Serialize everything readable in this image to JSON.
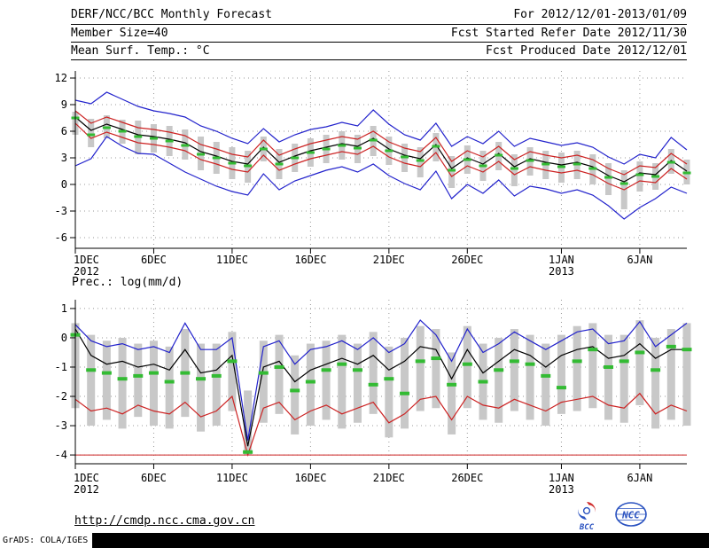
{
  "header": {
    "title": "DERF/NCC/BCC Monthly Forecast",
    "member_size": "Member Size=40",
    "temp_label": "Mean Surf. Temp.: °C",
    "for_range": "For 2012/12/01-2013/01/09",
    "fcst_started": "Fcst Started Refer Date 2012/11/30",
    "fcst_produced": "Fcst Produced Date 2012/12/01"
  },
  "footer": {
    "url": "http://cmdp.ncc.cma.gov.cn",
    "credit": "GrADS: COLA/IGES",
    "bcc_label": "BCC",
    "ncc_label": "NCC"
  },
  "colors": {
    "blue": "#2222cc",
    "red": "#cc2222",
    "green": "#33bb33",
    "gray_bar": "#c8c8c8",
    "black": "#000000",
    "grid": "#999999"
  },
  "chart_data": [
    {
      "type": "line",
      "name": "surface-temperature-forecast",
      "title": "Mean Surf. Temp.: °C",
      "x_start": "1DEC2012",
      "x_end": "9JAN2013",
      "n_days": 40,
      "ylim": [
        -7.2,
        12.8
      ],
      "yticks": [
        12,
        9,
        6,
        3,
        0,
        -3,
        -6
      ],
      "xticks": [
        {
          "day": 0,
          "label": "1DEC",
          "sub": "2012"
        },
        {
          "day": 5,
          "label": "6DEC"
        },
        {
          "day": 10,
          "label": "11DEC"
        },
        {
          "day": 15,
          "label": "16DEC"
        },
        {
          "day": 20,
          "label": "21DEC"
        },
        {
          "day": 25,
          "label": "26DEC"
        },
        {
          "day": 31,
          "label": "1JAN",
          "sub": "2013"
        },
        {
          "day": 36,
          "label": "6JAN"
        }
      ],
      "series": [
        {
          "name": "ensemble-max",
          "color": "#2222cc",
          "values": [
            9.5,
            9.1,
            10.4,
            9.6,
            8.8,
            8.3,
            8.0,
            7.6,
            6.6,
            6.0,
            5.2,
            4.6,
            6.3,
            4.8,
            5.6,
            6.2,
            6.5,
            7.0,
            6.6,
            8.4,
            6.8,
            5.6,
            5.0,
            6.9,
            4.3,
            5.4,
            4.6,
            6.0,
            4.3,
            5.2,
            4.8,
            4.4,
            4.7,
            4.2,
            3.1,
            2.3,
            3.4,
            3.0,
            5.3,
            3.9
          ]
        },
        {
          "name": "ensemble-min",
          "color": "#2222cc",
          "values": [
            2.1,
            2.9,
            5.4,
            4.3,
            3.5,
            3.4,
            2.4,
            1.4,
            0.6,
            -0.2,
            -0.8,
            -1.2,
            1.2,
            -0.6,
            0.4,
            1.0,
            1.6,
            2.0,
            1.4,
            2.3,
            1.0,
            0.1,
            -0.6,
            1.5,
            -1.6,
            0.0,
            -1.0,
            0.5,
            -1.3,
            -0.2,
            -0.5,
            -1.0,
            -0.6,
            -1.2,
            -2.4,
            -3.9,
            -2.6,
            -1.6,
            -0.3,
            -1.0
          ]
        },
        {
          "name": "upper-quartile",
          "color": "#cc2222",
          "values": [
            8.3,
            6.9,
            7.6,
            7.0,
            6.4,
            6.2,
            5.9,
            5.5,
            4.5,
            4.0,
            3.4,
            3.1,
            5.0,
            3.3,
            4.0,
            4.6,
            5.0,
            5.4,
            5.1,
            6.0,
            4.8,
            4.1,
            3.7,
            5.3,
            2.6,
            3.8,
            3.1,
            4.3,
            2.8,
            3.7,
            3.3,
            3.0,
            3.3,
            2.8,
            1.8,
            1.1,
            2.1,
            1.9,
            3.5,
            2.3
          ]
        },
        {
          "name": "lower-quartile",
          "color": "#cc2222",
          "values": [
            6.9,
            5.2,
            5.9,
            5.3,
            4.7,
            4.5,
            4.2,
            3.8,
            2.8,
            2.3,
            1.7,
            1.4,
            3.3,
            1.6,
            2.3,
            2.9,
            3.3,
            3.7,
            3.4,
            4.3,
            3.1,
            2.4,
            2.0,
            3.6,
            0.9,
            2.1,
            1.4,
            2.6,
            1.1,
            2.0,
            1.6,
            1.3,
            1.6,
            1.1,
            0.1,
            -0.6,
            0.4,
            0.2,
            1.8,
            0.6
          ]
        },
        {
          "name": "ensemble-mean",
          "color": "#000000",
          "values": [
            7.6,
            6.1,
            6.8,
            6.2,
            5.6,
            5.4,
            5.1,
            4.7,
            3.7,
            3.2,
            2.6,
            2.3,
            4.2,
            2.5,
            3.2,
            3.8,
            4.2,
            4.6,
            4.3,
            5.2,
            4.0,
            3.3,
            2.9,
            4.5,
            1.8,
            3.0,
            2.3,
            3.5,
            2.0,
            2.9,
            2.5,
            2.2,
            2.5,
            2.0,
            1.0,
            0.3,
            1.3,
            1.1,
            2.7,
            1.5
          ]
        }
      ],
      "bars": {
        "name": "ensemble-spread",
        "color": "#c8c8c8",
        "hi": [
          8.2,
          7.4,
          7.8,
          7.3,
          7.2,
          6.8,
          6.6,
          6.2,
          5.4,
          4.8,
          4.2,
          3.8,
          5.4,
          4.0,
          4.6,
          5.2,
          5.6,
          6.0,
          5.6,
          6.6,
          5.4,
          4.6,
          4.2,
          5.8,
          3.2,
          4.4,
          3.8,
          4.8,
          3.4,
          4.2,
          3.8,
          3.6,
          3.8,
          3.4,
          2.4,
          1.6,
          2.6,
          2.4,
          4.0,
          2.8
        ],
        "lo": [
          5.6,
          4.2,
          5.2,
          4.6,
          3.4,
          3.6,
          3.2,
          2.8,
          1.6,
          1.2,
          0.6,
          0.2,
          2.6,
          0.6,
          1.4,
          2.0,
          2.4,
          2.8,
          2.4,
          3.2,
          2.2,
          1.4,
          0.8,
          2.6,
          -0.4,
          1.2,
          0.4,
          1.6,
          -0.2,
          1.0,
          0.6,
          0.2,
          0.6,
          0.0,
          -1.2,
          -2.8,
          -0.8,
          -0.6,
          1.2,
          0.0
        ]
      },
      "dashes": {
        "name": "climatology-marker",
        "color": "#33bb33",
        "values": [
          7.5,
          5.6,
          6.4,
          6.0,
          5.4,
          5.2,
          4.9,
          4.4,
          3.4,
          3.0,
          2.4,
          2.1,
          4.0,
          2.3,
          3.0,
          3.6,
          4.0,
          4.4,
          4.1,
          5.0,
          3.8,
          3.1,
          2.7,
          4.3,
          1.6,
          2.8,
          2.1,
          3.3,
          1.8,
          2.7,
          2.3,
          2.0,
          2.3,
          1.8,
          0.8,
          0.1,
          1.1,
          0.9,
          2.5,
          1.3
        ]
      }
    },
    {
      "type": "line",
      "name": "precipitation-forecast",
      "title": "Prec.: log(mm/d)",
      "x_start": "1DEC2012",
      "x_end": "9JAN2013",
      "n_days": 40,
      "ylim": [
        -4.3,
        1.3
      ],
      "baseline": -4.0,
      "yticks": [
        1,
        0,
        -1,
        -2,
        -3,
        -4
      ],
      "xticks": [
        {
          "day": 0,
          "label": "1DEC",
          "sub": "2012"
        },
        {
          "day": 5,
          "label": "6DEC"
        },
        {
          "day": 10,
          "label": "11DEC"
        },
        {
          "day": 15,
          "label": "16DEC"
        },
        {
          "day": 20,
          "label": "21DEC"
        },
        {
          "day": 25,
          "label": "26DEC"
        },
        {
          "day": 31,
          "label": "1JAN",
          "sub": "2013"
        },
        {
          "day": 36,
          "label": "6JAN"
        }
      ],
      "series": [
        {
          "name": "ensemble-max",
          "color": "#2222cc",
          "values": [
            0.45,
            -0.1,
            -0.3,
            -0.2,
            -0.4,
            -0.3,
            -0.5,
            0.5,
            -0.4,
            -0.4,
            0.0,
            -3.5,
            -0.3,
            -0.1,
            -0.9,
            -0.4,
            -0.3,
            -0.1,
            -0.4,
            0.0,
            -0.5,
            -0.2,
            0.6,
            0.1,
            -0.8,
            0.3,
            -0.5,
            -0.2,
            0.2,
            -0.1,
            -0.4,
            -0.1,
            0.2,
            0.3,
            -0.2,
            -0.1,
            0.55,
            -0.3,
            0.1,
            0.5
          ]
        },
        {
          "name": "ensemble-lower",
          "color": "#cc2222",
          "values": [
            -2.1,
            -2.5,
            -2.4,
            -2.6,
            -2.3,
            -2.5,
            -2.6,
            -2.2,
            -2.7,
            -2.5,
            -2.0,
            -4.0,
            -2.4,
            -2.2,
            -2.8,
            -2.5,
            -2.3,
            -2.6,
            -2.4,
            -2.2,
            -2.9,
            -2.6,
            -2.1,
            -2.0,
            -2.8,
            -2.0,
            -2.3,
            -2.4,
            -2.1,
            -2.3,
            -2.5,
            -2.2,
            -2.1,
            -2.0,
            -2.3,
            -2.4,
            -1.9,
            -2.6,
            -2.3,
            -2.5
          ]
        },
        {
          "name": "ensemble-mean",
          "color": "#000000",
          "values": [
            0.3,
            -0.6,
            -0.9,
            -0.8,
            -1.0,
            -0.9,
            -1.1,
            -0.4,
            -1.2,
            -1.1,
            -0.6,
            -3.7,
            -1.0,
            -0.8,
            -1.5,
            -1.1,
            -0.9,
            -0.7,
            -0.9,
            -0.6,
            -1.1,
            -0.8,
            -0.3,
            -0.4,
            -1.4,
            -0.4,
            -1.2,
            -0.8,
            -0.4,
            -0.6,
            -1.0,
            -0.6,
            -0.4,
            -0.3,
            -0.7,
            -0.6,
            -0.2,
            -0.7,
            -0.4,
            -0.4
          ]
        }
      ],
      "bars": {
        "name": "ensemble-spread",
        "color": "#c8c8c8",
        "hi": [
          0.5,
          0.1,
          -0.1,
          0.0,
          -0.2,
          -0.1,
          -0.3,
          0.3,
          -0.2,
          -0.2,
          0.2,
          -1.8,
          -0.1,
          0.1,
          -0.6,
          -0.2,
          -0.1,
          0.1,
          -0.2,
          0.2,
          -0.3,
          0.0,
          0.4,
          0.3,
          -0.5,
          0.4,
          -0.2,
          0.0,
          0.3,
          0.1,
          -0.2,
          0.1,
          0.4,
          0.5,
          0.1,
          0.1,
          0.6,
          0.0,
          0.3,
          0.5
        ],
        "lo": [
          -2.4,
          -3.0,
          -2.8,
          -3.1,
          -2.7,
          -3.0,
          -3.1,
          -2.7,
          -3.2,
          -3.0,
          -2.5,
          -4.0,
          -2.9,
          -2.6,
          -3.3,
          -3.0,
          -2.8,
          -3.1,
          -2.9,
          -2.6,
          -3.4,
          -3.1,
          -2.5,
          -2.4,
          -3.3,
          -2.4,
          -2.8,
          -2.9,
          -2.5,
          -2.8,
          -3.0,
          -2.6,
          -2.5,
          -2.4,
          -2.8,
          -2.9,
          -2.3,
          -3.1,
          -2.8,
          -3.0
        ]
      },
      "dashes": {
        "name": "climatology-marker",
        "color": "#33bb33",
        "values": [
          0.1,
          -1.1,
          -1.2,
          -1.4,
          -1.3,
          -1.2,
          -1.5,
          -1.2,
          -1.4,
          -1.3,
          -0.8,
          -3.9,
          -1.2,
          -1.0,
          -1.8,
          -1.5,
          -1.1,
          -0.9,
          -1.1,
          -1.6,
          -1.4,
          -1.9,
          -0.8,
          -0.7,
          -1.6,
          -0.9,
          -1.5,
          -1.1,
          -0.8,
          -0.9,
          -1.3,
          -1.7,
          -0.8,
          -0.4,
          -1.0,
          -0.8,
          -0.5,
          -1.1,
          -0.3,
          -0.4
        ]
      }
    }
  ]
}
